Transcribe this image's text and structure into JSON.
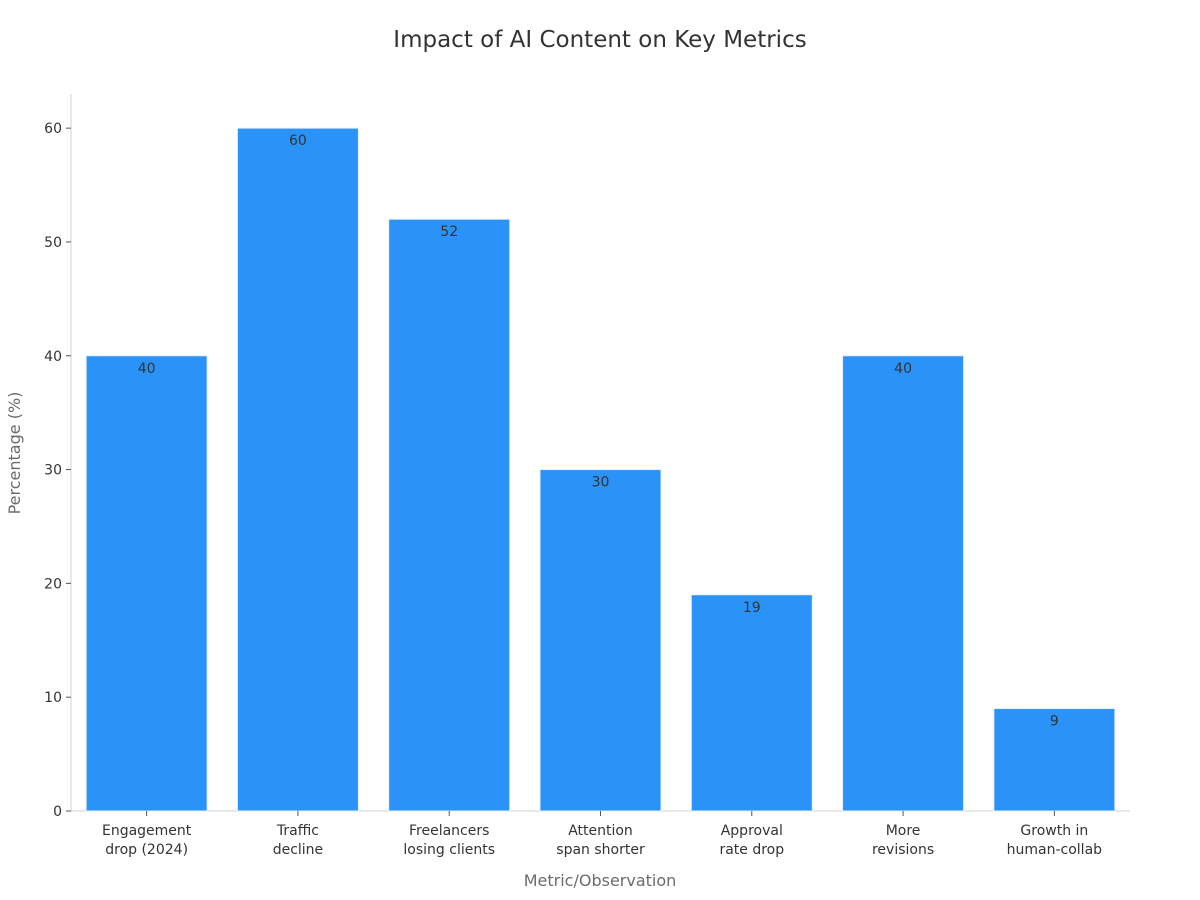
{
  "chart_data": {
    "type": "bar",
    "title": "Impact of AI Content on Key Metrics",
    "xlabel": "Metric/Observation",
    "ylabel": "Percentage (%)",
    "categories": [
      [
        "Engagement",
        "drop (2024)"
      ],
      [
        "Traffic",
        "decline"
      ],
      [
        "Freelancers",
        "losing clients"
      ],
      [
        "Attention",
        "span shorter"
      ],
      [
        "Approval",
        "rate drop"
      ],
      [
        "More",
        "revisions"
      ],
      [
        "Growth in",
        "human-collab"
      ]
    ],
    "values": [
      40,
      60,
      52,
      30,
      19,
      40,
      9
    ],
    "ylim": [
      0,
      63
    ],
    "yticks": [
      0,
      10,
      20,
      30,
      40,
      50,
      60
    ],
    "bar_color": "#2b92f7",
    "grid": false,
    "legend": "none"
  }
}
